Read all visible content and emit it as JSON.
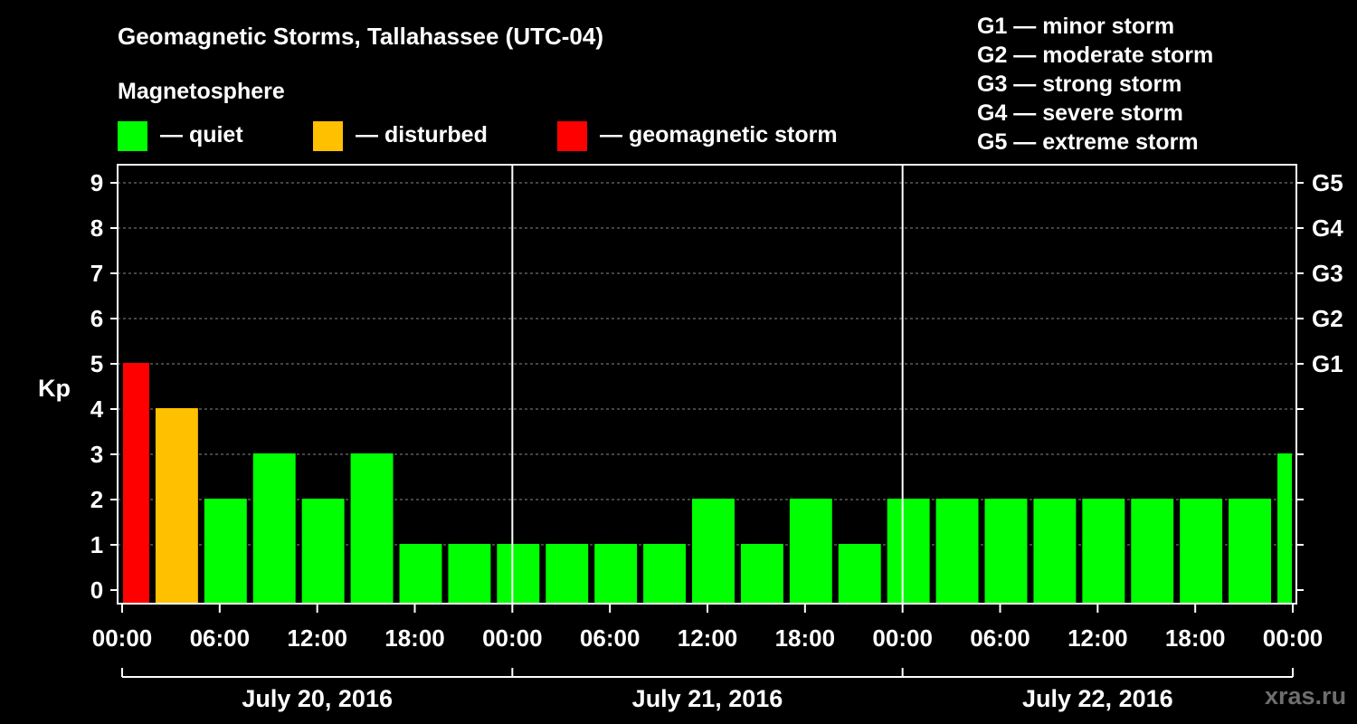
{
  "title": "Geomagnetic Storms, Tallahassee (UTC-04)",
  "magnetosphere_label": "Magnetosphere",
  "legend": [
    {
      "label": "— quiet",
      "color": "#00ff00"
    },
    {
      "label": "— disturbed",
      "color": "#ffc000"
    },
    {
      "label": "— geomagnetic storm",
      "color": "#ff0000"
    }
  ],
  "g_scale": [
    "G1 — minor storm",
    "G2 — moderate storm",
    "G3 — strong storm",
    "G4 — severe storm",
    "G5 — extreme storm"
  ],
  "watermark": "xras.ru",
  "colors": {
    "background": "#000000",
    "quiet": "#00ff00",
    "disturbed": "#ffc000",
    "storm": "#ff0000",
    "axis": "#ffffff",
    "grid": "#888888"
  },
  "chart_data": {
    "type": "bar",
    "ylabel": "Kp",
    "ylim": [
      0,
      9
    ],
    "yticks": [
      "0",
      "1",
      "2",
      "3",
      "4",
      "5",
      "6",
      "7",
      "8",
      "9"
    ],
    "right_ticks": [
      {
        "kp": 5,
        "label": "G1"
      },
      {
        "kp": 6,
        "label": "G2"
      },
      {
        "kp": 7,
        "label": "G3"
      },
      {
        "kp": 8,
        "label": "G4"
      },
      {
        "kp": 9,
        "label": "G5"
      }
    ],
    "xticks": [
      "00:00",
      "06:00",
      "12:00",
      "18:00",
      "00:00",
      "06:00",
      "12:00",
      "18:00",
      "00:00",
      "06:00",
      "12:00",
      "18:00",
      "00:00"
    ],
    "xlim_hours": [
      0,
      72
    ],
    "days": [
      "July 20, 2016",
      "July 21, 2016",
      "July 22, 2016"
    ],
    "grid": "horizontal dashed at each Kp unit",
    "bar_interval_hours": 3,
    "bars": [
      {
        "start_hour": 0,
        "kp": 5,
        "level": "storm"
      },
      {
        "start_hour": 2,
        "kp": 4,
        "level": "disturbed"
      },
      {
        "start_hour": 5,
        "kp": 2,
        "level": "quiet"
      },
      {
        "start_hour": 8,
        "kp": 3,
        "level": "quiet"
      },
      {
        "start_hour": 11,
        "kp": 2,
        "level": "quiet"
      },
      {
        "start_hour": 14,
        "kp": 3,
        "level": "quiet"
      },
      {
        "start_hour": 17,
        "kp": 1,
        "level": "quiet"
      },
      {
        "start_hour": 20,
        "kp": 1,
        "level": "quiet"
      },
      {
        "start_hour": 23,
        "kp": 1,
        "level": "quiet"
      },
      {
        "start_hour": 26,
        "kp": 1,
        "level": "quiet"
      },
      {
        "start_hour": 29,
        "kp": 1,
        "level": "quiet"
      },
      {
        "start_hour": 32,
        "kp": 1,
        "level": "quiet"
      },
      {
        "start_hour": 35,
        "kp": 2,
        "level": "quiet"
      },
      {
        "start_hour": 38,
        "kp": 1,
        "level": "quiet"
      },
      {
        "start_hour": 41,
        "kp": 2,
        "level": "quiet"
      },
      {
        "start_hour": 44,
        "kp": 1,
        "level": "quiet"
      },
      {
        "start_hour": 47,
        "kp": 2,
        "level": "quiet"
      },
      {
        "start_hour": 50,
        "kp": 2,
        "level": "quiet"
      },
      {
        "start_hour": 53,
        "kp": 2,
        "level": "quiet"
      },
      {
        "start_hour": 56,
        "kp": 2,
        "level": "quiet"
      },
      {
        "start_hour": 59,
        "kp": 2,
        "level": "quiet"
      },
      {
        "start_hour": 62,
        "kp": 2,
        "level": "quiet"
      },
      {
        "start_hour": 65,
        "kp": 2,
        "level": "quiet"
      },
      {
        "start_hour": 68,
        "kp": 2,
        "level": "quiet"
      },
      {
        "start_hour": 71,
        "kp": 3,
        "level": "quiet"
      }
    ]
  }
}
